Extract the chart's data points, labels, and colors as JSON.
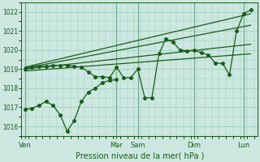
{
  "background_color": "#cce8e0",
  "grid_color": "#99ccbb",
  "line_color": "#1a5c1a",
  "xlabel": "Pression niveau de la mer( hPa )",
  "ylim": [
    1015.5,
    1022.3
  ],
  "yticks": [
    1016,
    1017,
    1018,
    1019,
    1020,
    1021,
    1022
  ],
  "day_labels": [
    "Ven",
    "Mar",
    "Sam",
    "Dim",
    "Lun"
  ],
  "day_x": [
    0,
    13,
    16,
    24,
    31
  ],
  "xlim": [
    -0.5,
    33
  ],
  "series_main_x": [
    0,
    1,
    2,
    3,
    4,
    5,
    6,
    7,
    8,
    9,
    10,
    11,
    12,
    13,
    14,
    15,
    16,
    17,
    18,
    19,
    20,
    21,
    22,
    23,
    24,
    25,
    26,
    27,
    28,
    29,
    30,
    31,
    32
  ],
  "series_main_y": [
    1019.0,
    1019.1,
    1019.15,
    1019.15,
    1019.2,
    1019.2,
    1019.2,
    1019.15,
    1019.1,
    1018.85,
    1018.6,
    1018.6,
    1018.55,
    1019.1,
    1018.55,
    1018.55,
    1019.0,
    1017.5,
    1017.5,
    1019.8,
    1020.6,
    1020.4,
    1020.0,
    1019.95,
    1020.0,
    1019.85,
    1019.75,
    1019.3,
    1019.3,
    1018.7,
    1021.0,
    1021.9,
    1022.1
  ],
  "series_low_x": [
    0,
    1,
    2,
    3,
    4,
    5,
    6,
    7,
    8,
    9,
    10,
    11,
    12,
    13
  ],
  "series_low_y": [
    1016.9,
    1016.95,
    1017.1,
    1017.3,
    1017.1,
    1016.6,
    1015.75,
    1016.3,
    1017.3,
    1017.8,
    1018.0,
    1018.3,
    1018.4,
    1018.45
  ],
  "trend1_x": [
    0,
    32
  ],
  "trend1_y": [
    1019.1,
    1021.9
  ],
  "trend2_x": [
    0,
    32
  ],
  "trend2_y": [
    1019.05,
    1021.3
  ],
  "trend3_x": [
    0,
    32
  ],
  "trend3_y": [
    1019.0,
    1020.3
  ],
  "trend4_x": [
    0,
    32
  ],
  "trend4_y": [
    1018.9,
    1019.8
  ]
}
